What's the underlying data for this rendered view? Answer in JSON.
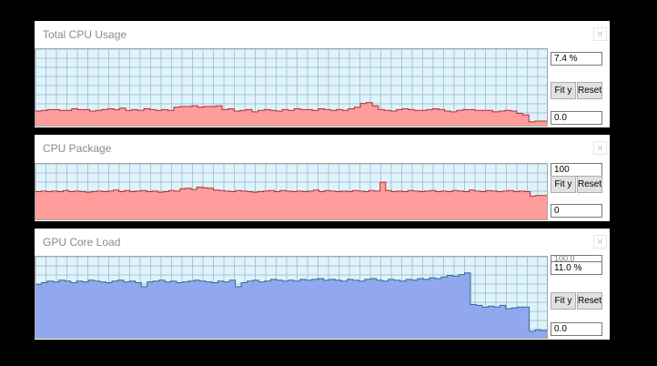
{
  "panels": [
    {
      "title": "Total CPU Usage",
      "top_value": "7.4 %",
      "bottom_value": "0.0",
      "fit_label": "Fit y",
      "reset_label": "Reset",
      "fill_color": "#ff9c9c",
      "line_color": "#b03030",
      "series": [
        19,
        20,
        21,
        21,
        20,
        20,
        22,
        21,
        21,
        19,
        20,
        21,
        22,
        21,
        23,
        20,
        21,
        20,
        22,
        21,
        20,
        21,
        20,
        24,
        25,
        25,
        26,
        24,
        25,
        25,
        26,
        21,
        22,
        19,
        20,
        21,
        18,
        20,
        21,
        20,
        19,
        21,
        20,
        22,
        21,
        21,
        20,
        22,
        21,
        20,
        21,
        20,
        22,
        24,
        29,
        30,
        26,
        21,
        20,
        19,
        21,
        22,
        21,
        20,
        20,
        21,
        22,
        21,
        19,
        18,
        20,
        21,
        21,
        20,
        20,
        20,
        18,
        19,
        20,
        19,
        16,
        14,
        5,
        6,
        6
      ]
    },
    {
      "title": "CPU Package",
      "top_value": "100",
      "bottom_value": "0",
      "fit_label": "Fit y",
      "reset_label": "Reset",
      "fill_color": "#ff9c9c",
      "line_color": "#b03030",
      "series": [
        50,
        51,
        50,
        51,
        50,
        52,
        50,
        51,
        50,
        49,
        50,
        51,
        50,
        51,
        53,
        50,
        52,
        50,
        51,
        52,
        50,
        51,
        49,
        50,
        52,
        51,
        55,
        56,
        54,
        58,
        57,
        56,
        53,
        52,
        51,
        50,
        52,
        51,
        50,
        49,
        50,
        51,
        52,
        50,
        52,
        51,
        50,
        51,
        50,
        51,
        53,
        50,
        52,
        51,
        50,
        51,
        50,
        52,
        51,
        50,
        52,
        51,
        67,
        52,
        50,
        51,
        50,
        52,
        51,
        50,
        51,
        52,
        50,
        51,
        50,
        52,
        51,
        50,
        53,
        51,
        50,
        52,
        51,
        50,
        51,
        52,
        50,
        51,
        50,
        42,
        43,
        43
      ]
    },
    {
      "title": "GPU Core Load",
      "top_value": "11.0 %",
      "top_value_behind": "100.0",
      "bottom_value": "0.0",
      "fit_label": "Fit y",
      "reset_label": "Reset",
      "fill_color": "#92a8ee",
      "line_color": "#2a6f8f",
      "series": [
        66,
        68,
        70,
        69,
        71,
        70,
        68,
        70,
        69,
        71,
        70,
        69,
        68,
        70,
        71,
        69,
        70,
        68,
        63,
        69,
        70,
        71,
        69,
        70,
        68,
        69,
        70,
        71,
        70,
        69,
        68,
        70,
        69,
        71,
        63,
        68,
        70,
        71,
        69,
        70,
        72,
        71,
        70,
        71,
        70,
        72,
        71,
        72,
        73,
        71,
        72,
        71,
        70,
        72,
        71,
        70,
        72,
        73,
        71,
        70,
        72,
        71,
        70,
        72,
        71,
        73,
        72,
        74,
        73,
        75,
        77,
        76,
        78,
        80,
        41,
        40,
        38,
        39,
        38,
        40,
        36,
        37,
        38,
        38,
        8,
        10,
        9
      ]
    }
  ]
}
